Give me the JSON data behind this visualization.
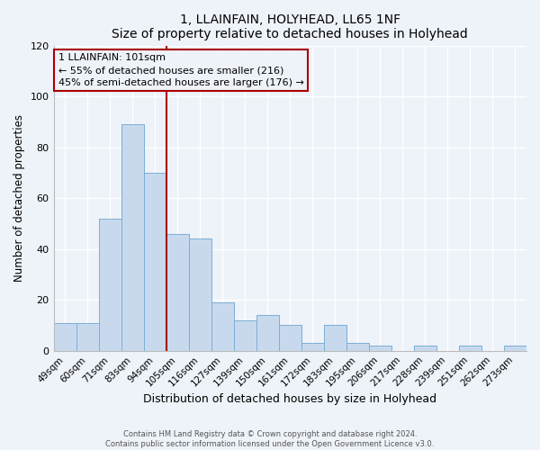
{
  "title": "1, LLAINFAIN, HOLYHEAD, LL65 1NF",
  "subtitle": "Size of property relative to detached houses in Holyhead",
  "xlabel": "Distribution of detached houses by size in Holyhead",
  "ylabel": "Number of detached properties",
  "bar_color": "#c8d9ee",
  "bar_edge_color": "#7bafd4",
  "categories": [
    "49sqm",
    "60sqm",
    "71sqm",
    "83sqm",
    "94sqm",
    "105sqm",
    "116sqm",
    "127sqm",
    "139sqm",
    "150sqm",
    "161sqm",
    "172sqm",
    "183sqm",
    "195sqm",
    "206sqm",
    "217sqm",
    "228sqm",
    "239sqm",
    "251sqm",
    "262sqm",
    "273sqm"
  ],
  "values": [
    11,
    11,
    52,
    89,
    70,
    46,
    44,
    19,
    12,
    14,
    10,
    3,
    10,
    3,
    2,
    0,
    2,
    0,
    2,
    0,
    2
  ],
  "ylim": [
    0,
    120
  ],
  "yticks": [
    0,
    20,
    40,
    60,
    80,
    100,
    120
  ],
  "annotation_line1": "1 LLAINFAIN: 101sqm",
  "annotation_line2": "← 55% of detached houses are smaller (216)",
  "annotation_line3": "45% of semi-detached houses are larger (176) →",
  "vline_x_index": 4.5,
  "vline_color": "#aa0000",
  "annotation_box_edgecolor": "#aa0000",
  "footer_line1": "Contains HM Land Registry data © Crown copyright and database right 2024.",
  "footer_line2": "Contains public sector information licensed under the Open Government Licence v3.0.",
  "background_color": "#eef2f9",
  "grid_color": "#ffffff"
}
